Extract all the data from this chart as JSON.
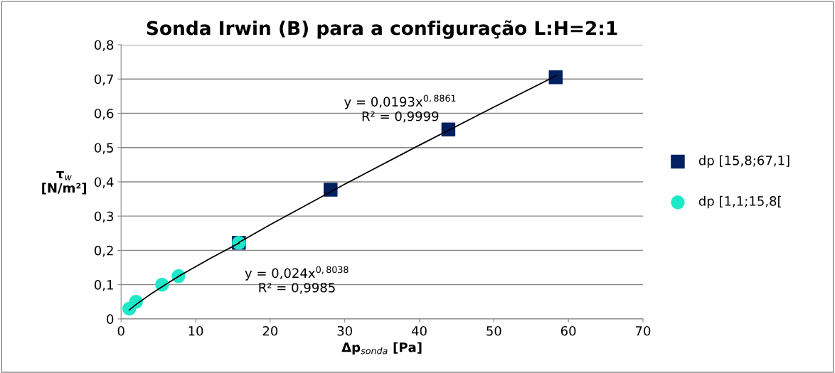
{
  "chart_data": {
    "type": "scatter",
    "title": "Sonda Irwin (B) para a configuração L:H=2:1",
    "xlabel": "Δp$_{sonda}$ [Pa]",
    "ylabel": "τ$_{w}$\n[N/m²]",
    "xlim": [
      0,
      70
    ],
    "xticks": [
      0,
      10,
      20,
      30,
      40,
      50,
      60,
      70
    ],
    "ylim": [
      0,
      0.8
    ],
    "yticks": [
      {
        "value": 0,
        "label": "0"
      },
      {
        "value": 0.1,
        "label": "0,1"
      },
      {
        "value": 0.2,
        "label": "0,2"
      },
      {
        "value": 0.3,
        "label": "0,3"
      },
      {
        "value": 0.4,
        "label": "0,4"
      },
      {
        "value": 0.5,
        "label": "0,5"
      },
      {
        "value": 0.6,
        "label": "0,6"
      },
      {
        "value": 0.7,
        "label": "0,7"
      },
      {
        "value": 0.8,
        "label": "0,8"
      }
    ],
    "grid": "y",
    "legend": "right",
    "series": [
      {
        "name": "dp [15,8;67,1]",
        "color": "#002060",
        "marker": "square",
        "x": [
          15.8,
          28.1,
          43.9,
          58.3
        ],
        "values": [
          0.222,
          0.377,
          0.553,
          0.705
        ]
      },
      {
        "name": "dp [1,1;15,8[",
        "color": "#1de9c9",
        "marker": "circle",
        "x": [
          1.1,
          2.0,
          5.5,
          7.7,
          15.8
        ],
        "values": [
          0.03,
          0.05,
          0.1,
          0.125,
          0.222
        ]
      },
      {
        "type": "line",
        "color": "#000000",
        "marker": "none",
        "x": [
          15.8,
          20,
          30,
          40,
          50,
          58.4
        ],
        "values": [
          0.223,
          0.275,
          0.393,
          0.507,
          0.618,
          0.71
        ]
      },
      {
        "type": "line",
        "color": "#000000",
        "marker": "none",
        "x": [
          1.1,
          2,
          4,
          6,
          8,
          12,
          15.8
        ],
        "values": [
          0.026,
          0.042,
          0.073,
          0.101,
          0.128,
          0.177,
          0.221
        ]
      }
    ],
    "annotations": [
      "y = 0,0193x$^{0,8861}$\nR² = 0,9999",
      "y = 0,024x$^{0,8038}$\nR² = 0,9985"
    ]
  }
}
